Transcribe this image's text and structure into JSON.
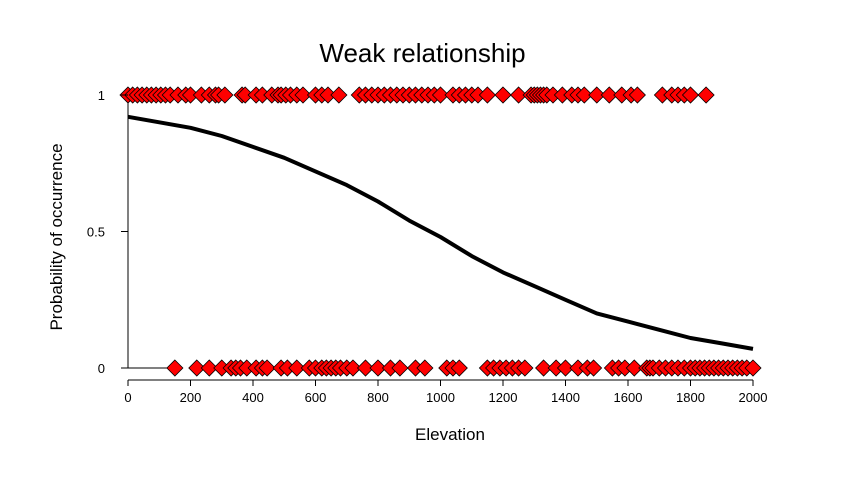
{
  "chart_data": {
    "type": "scatter",
    "title": "Weak relationship",
    "xlabel": "Elevation",
    "ylabel": "Probability of occurrence",
    "xlim": [
      0,
      2000
    ],
    "ylim": [
      0,
      1
    ],
    "x_ticks": [
      0,
      200,
      400,
      600,
      800,
      1000,
      1200,
      1400,
      1600,
      1800,
      2000
    ],
    "y_ticks": [
      0,
      0.5,
      1
    ],
    "y_tick_labels": [
      "0",
      "0.5",
      "1"
    ],
    "grid": false,
    "series": [
      {
        "kind": "points",
        "marker": "diamond",
        "color": "#ff0000",
        "y": 1,
        "x": [
          0,
          15,
          30,
          45,
          60,
          75,
          90,
          105,
          120,
          135,
          160,
          185,
          200,
          235,
          260,
          280,
          290,
          310,
          365,
          375,
          410,
          430,
          460,
          480,
          490,
          505,
          520,
          540,
          560,
          600,
          620,
          640,
          675,
          740,
          760,
          780,
          800,
          820,
          840,
          860,
          880,
          900,
          920,
          940,
          960,
          980,
          1000,
          1040,
          1060,
          1080,
          1100,
          1120,
          1150,
          1200,
          1250,
          1290,
          1300,
          1310,
          1320,
          1330,
          1340,
          1360,
          1390,
          1420,
          1440,
          1460,
          1500,
          1540,
          1580,
          1610,
          1630,
          1710,
          1740,
          1760,
          1780,
          1800,
          1850
        ]
      },
      {
        "kind": "points",
        "marker": "diamond",
        "color": "#ff0000",
        "y": 0,
        "x": [
          150,
          220,
          260,
          300,
          330,
          345,
          360,
          380,
          410,
          430,
          445,
          490,
          510,
          540,
          580,
          600,
          620,
          635,
          650,
          665,
          680,
          700,
          720,
          760,
          800,
          840,
          870,
          920,
          950,
          1020,
          1040,
          1060,
          1150,
          1170,
          1190,
          1210,
          1230,
          1250,
          1270,
          1330,
          1370,
          1400,
          1440,
          1470,
          1490,
          1550,
          1570,
          1590,
          1620,
          1660,
          1670,
          1680,
          1700,
          1720,
          1740,
          1760,
          1780,
          1800,
          1815,
          1830,
          1845,
          1860,
          1875,
          1890,
          1905,
          1920,
          1935,
          1950,
          1965,
          1980,
          2000
        ]
      },
      {
        "kind": "curve",
        "name": "",
        "color": "#000000",
        "x": [
          0,
          100,
          200,
          300,
          400,
          500,
          600,
          700,
          800,
          900,
          1000,
          1100,
          1200,
          1300,
          1400,
          1500,
          1600,
          1700,
          1800,
          1900,
          2000
        ],
        "y": [
          0.92,
          0.9,
          0.88,
          0.85,
          0.81,
          0.77,
          0.72,
          0.67,
          0.61,
          0.54,
          0.48,
          0.41,
          0.35,
          0.3,
          0.25,
          0.2,
          0.17,
          0.14,
          0.11,
          0.09,
          0.07
        ]
      }
    ]
  }
}
